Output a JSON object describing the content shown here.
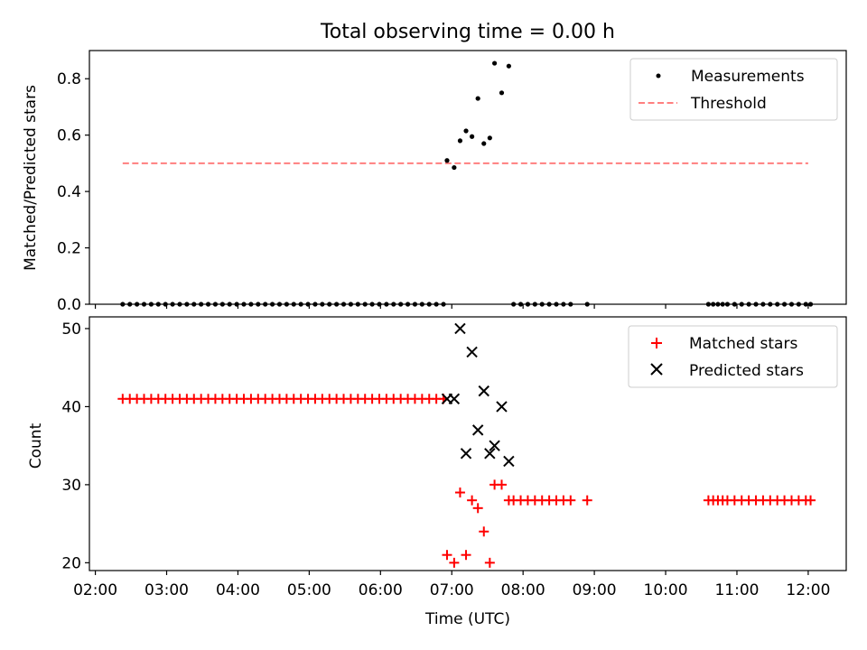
{
  "chart_data": [
    {
      "type": "scatter",
      "title": "Total observing time = 0.00 h",
      "xlabel": "",
      "ylabel": "Matched/Predicted stars",
      "ylim": [
        0,
        0.9
      ],
      "yticks": [
        "0.0",
        "0.2",
        "0.4",
        "0.6",
        "0.8"
      ],
      "ytick_values": [
        0,
        0.2,
        0.4,
        0.6,
        0.8
      ],
      "grid": false,
      "legend_position": "top-right",
      "legend": [
        "Measurements",
        "Threshold"
      ],
      "series": [
        {
          "name": "Measurements",
          "marker": "dot",
          "color": "#000000",
          "x": [
            "02:23",
            "02:29",
            "02:35",
            "02:41",
            "02:47",
            "02:53",
            "02:59",
            "03:05",
            "03:11",
            "03:17",
            "03:23",
            "03:29",
            "03:35",
            "03:41",
            "03:47",
            "03:53",
            "03:59",
            "04:05",
            "04:11",
            "04:17",
            "04:23",
            "04:29",
            "04:35",
            "04:41",
            "04:47",
            "04:53",
            "04:59",
            "05:05",
            "05:11",
            "05:17",
            "05:23",
            "05:29",
            "05:35",
            "05:41",
            "05:47",
            "05:53",
            "05:59",
            "06:05",
            "06:11",
            "06:17",
            "06:23",
            "06:29",
            "06:35",
            "06:41",
            "06:47",
            "06:53",
            "06:56",
            "07:02",
            "07:07",
            "07:12",
            "07:17",
            "07:22",
            "07:27",
            "07:32",
            "07:36",
            "07:42",
            "07:48",
            "07:52",
            "07:58",
            "08:04",
            "08:10",
            "08:16",
            "08:22",
            "08:28",
            "08:34",
            "08:40",
            "08:54",
            "10:36",
            "10:40",
            "10:44",
            "10:48",
            "10:52",
            "10:58",
            "11:04",
            "11:10",
            "11:16",
            "11:22",
            "11:28",
            "11:34",
            "11:40",
            "11:46",
            "11:52",
            "11:58",
            "12:02"
          ],
          "y": [
            0,
            0,
            0,
            0,
            0,
            0,
            0,
            0,
            0,
            0,
            0,
            0,
            0,
            0,
            0,
            0,
            0,
            0,
            0,
            0,
            0,
            0,
            0,
            0,
            0,
            0,
            0,
            0,
            0,
            0,
            0,
            0,
            0,
            0,
            0,
            0,
            0,
            0,
            0,
            0,
            0,
            0,
            0,
            0,
            0,
            0,
            0.51,
            0.485,
            0.58,
            0.615,
            0.595,
            0.73,
            0.57,
            0.59,
            0.855,
            0.75,
            0.845,
            0,
            0,
            0,
            0,
            0,
            0,
            0,
            0,
            0,
            0,
            0,
            0,
            0,
            0,
            0,
            0,
            0,
            0,
            0,
            0,
            0,
            0,
            0,
            0,
            0,
            0,
            0
          ]
        },
        {
          "name": "Threshold",
          "marker": "dashed-line",
          "color": "#ff7f7f",
          "x": [
            "02:23",
            "12:00"
          ],
          "y": [
            0.5,
            0.5
          ]
        }
      ]
    },
    {
      "type": "scatter",
      "title": "",
      "xlabel": "Time (UTC)",
      "ylabel": "Count",
      "ylim": [
        19,
        51.5
      ],
      "yticks": [
        "20",
        "30",
        "40",
        "50"
      ],
      "ytick_values": [
        20,
        30,
        40,
        50
      ],
      "xlim": [
        "01:55",
        "12:32"
      ],
      "xticks": [
        "02:00",
        "03:00",
        "04:00",
        "05:00",
        "06:00",
        "07:00",
        "08:00",
        "09:00",
        "10:00",
        "11:00",
        "12:00"
      ],
      "grid": false,
      "legend_position": "top-right",
      "legend": [
        "Matched stars",
        "Predicted stars"
      ],
      "series": [
        {
          "name": "Matched stars",
          "marker": "plus",
          "color": "#ff0000",
          "x": [
            "02:23",
            "02:29",
            "02:35",
            "02:41",
            "02:47",
            "02:53",
            "02:59",
            "03:05",
            "03:11",
            "03:17",
            "03:23",
            "03:29",
            "03:35",
            "03:41",
            "03:47",
            "03:53",
            "03:59",
            "04:05",
            "04:11",
            "04:17",
            "04:23",
            "04:29",
            "04:35",
            "04:41",
            "04:47",
            "04:53",
            "04:59",
            "05:05",
            "05:11",
            "05:17",
            "05:23",
            "05:29",
            "05:35",
            "05:41",
            "05:47",
            "05:53",
            "05:59",
            "06:05",
            "06:11",
            "06:17",
            "06:23",
            "06:29",
            "06:35",
            "06:41",
            "06:47",
            "06:53",
            "06:56",
            "07:02",
            "07:07",
            "07:12",
            "07:17",
            "07:22",
            "07:27",
            "07:32",
            "07:36",
            "07:42",
            "07:48",
            "07:52",
            "07:58",
            "08:04",
            "08:10",
            "08:16",
            "08:22",
            "08:28",
            "08:34",
            "08:40",
            "08:54",
            "10:36",
            "10:40",
            "10:44",
            "10:48",
            "10:52",
            "10:58",
            "11:04",
            "11:10",
            "11:16",
            "11:22",
            "11:28",
            "11:34",
            "11:40",
            "11:46",
            "11:52",
            "11:58",
            "12:02"
          ],
          "y": [
            41,
            41,
            41,
            41,
            41,
            41,
            41,
            41,
            41,
            41,
            41,
            41,
            41,
            41,
            41,
            41,
            41,
            41,
            41,
            41,
            41,
            41,
            41,
            41,
            41,
            41,
            41,
            41,
            41,
            41,
            41,
            41,
            41,
            41,
            41,
            41,
            41,
            41,
            41,
            41,
            41,
            41,
            41,
            41,
            41,
            41,
            21,
            20,
            29,
            21,
            28,
            27,
            24,
            20,
            30,
            30,
            28,
            28,
            28,
            28,
            28,
            28,
            28,
            28,
            28,
            28,
            28,
            28,
            28,
            28,
            28,
            28,
            28,
            28,
            28,
            28,
            28,
            28,
            28,
            28,
            28,
            28,
            28,
            28
          ]
        },
        {
          "name": "Predicted stars",
          "marker": "x",
          "color": "#000000",
          "x": [
            "06:56",
            "07:02",
            "07:07",
            "07:12",
            "07:17",
            "07:22",
            "07:27",
            "07:32",
            "07:36",
            "07:42",
            "07:48"
          ],
          "y": [
            41,
            41,
            50,
            34,
            47,
            37,
            42,
            34,
            35,
            40,
            33
          ]
        }
      ]
    }
  ]
}
